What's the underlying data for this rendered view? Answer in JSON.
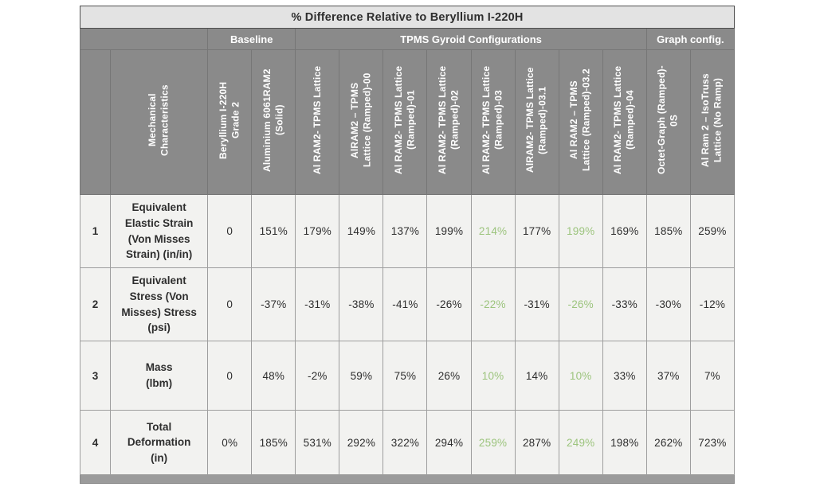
{
  "colors": {
    "title_bg": "#e3e3e3",
    "header_bg": "#8a8a8a",
    "cell_bg": "#f2f2f0",
    "highlight_green": "#9cc47d",
    "border_dark": "#4f4f4f",
    "bottom_strip": "#9b9b9b",
    "text_dark": "#2e2e2e"
  },
  "table": {
    "title": "% Difference Relative to Beryllium I-220H",
    "groups": [
      {
        "label": "",
        "span": 2
      },
      {
        "label": "Baseline",
        "span": 2
      },
      {
        "label": "TPMS Gyroid Configurations",
        "span": 8
      },
      {
        "label": "Graph config.",
        "span": 2
      }
    ],
    "row_label_header": "Mechanical\nCharacteristics",
    "columns": [
      "Beryllium I-220H\nGrade 2",
      "Aluminium 6061RAM2\n(Solid)",
      "Al RAM2- TPMS Lattice",
      "AlRAM2 – TPMS\nLattice (Ramped)-00",
      "Al RAM2- TPMS Lattice\n(Ramped)-01",
      "Al RAM2- TPMS Lattice\n(Ramped)-02",
      "Al RAM2- TPMS Lattice\n(Ramped)-03",
      "AlRAM2- TPMS Lattice\n(Ramped)-03.1",
      "Al RAM2 – TPMS\nLattice (Ramped)-03.2",
      "Al RAM2- TPMS Lattice\n(Ramped)-04",
      "Octet-Graph (Ramped)-\n0S",
      "Al Ram 2 – IsoTruss\nLattice (No Ramp)"
    ],
    "highlight_columns": [
      6,
      8
    ],
    "rows": [
      {
        "num": "1",
        "label": "Equivalent\nElastic Strain\n(Von Misses\nStrain) (in/in)",
        "values": [
          "0",
          "151%",
          "179%",
          "149%",
          "137%",
          "199%",
          "214%",
          "177%",
          "199%",
          "169%",
          "185%",
          "259%"
        ]
      },
      {
        "num": "2",
        "label": "Equivalent\nStress (Von\nMisses) Stress\n(psi)",
        "values": [
          "0",
          "-37%",
          "-31%",
          "-38%",
          "-41%",
          "-26%",
          "-22%",
          "-31%",
          "-26%",
          "-33%",
          "-30%",
          "-12%"
        ]
      },
      {
        "num": "3",
        "label": "Mass\n(lbm)",
        "values": [
          "0",
          "48%",
          "-2%",
          "59%",
          "75%",
          "26%",
          "10%",
          "14%",
          "10%",
          "33%",
          "37%",
          "7%"
        ]
      },
      {
        "num": "4",
        "label": "Total\nDeformation\n(in)",
        "values": [
          "0%",
          "185%",
          "531%",
          "292%",
          "322%",
          "294%",
          "259%",
          "287%",
          "249%",
          "198%",
          "262%",
          "723%"
        ]
      }
    ]
  },
  "chart_data": {
    "type": "table",
    "title": "% Difference Relative to Beryllium I-220H",
    "column_groups": [
      "Baseline (2 cols)",
      "TPMS Gyroid Configurations (8 cols)",
      "Graph config. (2 cols)"
    ],
    "categories": [
      "Beryllium I-220H Grade 2",
      "Aluminium 6061RAM2 (Solid)",
      "Al RAM2- TPMS Lattice",
      "AlRAM2 – TPMS Lattice (Ramped)-00",
      "Al RAM2- TPMS Lattice (Ramped)-01",
      "Al RAM2- TPMS Lattice (Ramped)-02",
      "Al RAM2- TPMS Lattice (Ramped)-03",
      "AlRAM2- TPMS Lattice (Ramped)-03.1",
      "Al RAM2 – TPMS Lattice (Ramped)-03.2",
      "Al RAM2- TPMS Lattice (Ramped)-04",
      "Octet-Graph (Ramped)-0S",
      "Al Ram 2 – IsoTruss Lattice (No Ramp)"
    ],
    "series": [
      {
        "name": "Equivalent Elastic Strain (Von Misses Strain) (in/in)",
        "values_pct": [
          0,
          151,
          179,
          149,
          137,
          199,
          214,
          177,
          199,
          169,
          185,
          259
        ]
      },
      {
        "name": "Equivalent Stress (Von Misses) Stress (psi)",
        "values_pct": [
          0,
          -37,
          -31,
          -38,
          -41,
          -26,
          -22,
          -31,
          -26,
          -33,
          -30,
          -12
        ]
      },
      {
        "name": "Mass (lbm)",
        "values_pct": [
          0,
          48,
          -2,
          59,
          75,
          26,
          10,
          14,
          10,
          33,
          37,
          7
        ]
      },
      {
        "name": "Total Deformation (in)",
        "values_pct": [
          0,
          185,
          531,
          292,
          322,
          294,
          259,
          287,
          249,
          198,
          262,
          723
        ]
      }
    ],
    "highlighted_categories": [
      "Al RAM2- TPMS Lattice (Ramped)-03",
      "Al RAM2 – TPMS Lattice (Ramped)-03.2"
    ],
    "highlight_meaning": "values shown in green text"
  }
}
